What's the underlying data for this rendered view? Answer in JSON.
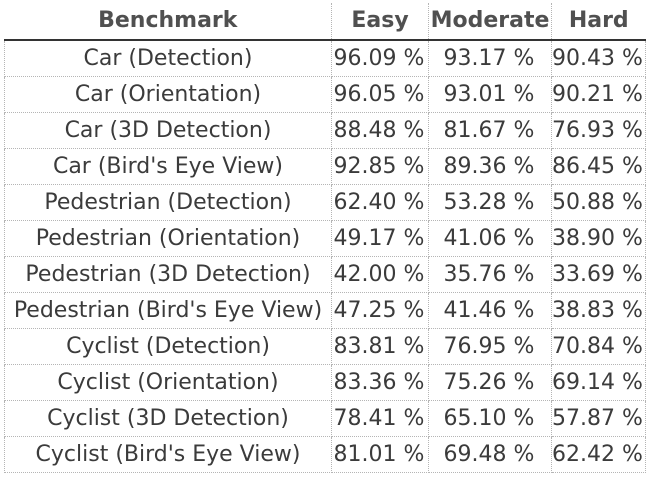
{
  "table": {
    "headers": {
      "benchmark": "Benchmark",
      "easy": "Easy",
      "moderate": "Moderate",
      "hard": "Hard"
    },
    "rows": [
      {
        "benchmark": "Car (Detection)",
        "easy": "96.09 %",
        "moderate": "93.17 %",
        "hard": "90.43 %"
      },
      {
        "benchmark": "Car (Orientation)",
        "easy": "96.05 %",
        "moderate": "93.01 %",
        "hard": "90.21 %"
      },
      {
        "benchmark": "Car (3D Detection)",
        "easy": "88.48 %",
        "moderate": "81.67 %",
        "hard": "76.93 %"
      },
      {
        "benchmark": "Car (Bird's Eye View)",
        "easy": "92.85 %",
        "moderate": "89.36 %",
        "hard": "86.45 %"
      },
      {
        "benchmark": "Pedestrian (Detection)",
        "easy": "62.40 %",
        "moderate": "53.28 %",
        "hard": "50.88 %"
      },
      {
        "benchmark": "Pedestrian (Orientation)",
        "easy": "49.17 %",
        "moderate": "41.06 %",
        "hard": "38.90 %"
      },
      {
        "benchmark": "Pedestrian (3D Detection)",
        "easy": "42.00 %",
        "moderate": "35.76 %",
        "hard": "33.69 %"
      },
      {
        "benchmark": "Pedestrian (Bird's Eye View)",
        "easy": "47.25 %",
        "moderate": "41.46 %",
        "hard": "38.83 %"
      },
      {
        "benchmark": "Cyclist (Detection)",
        "easy": "83.81 %",
        "moderate": "76.95 %",
        "hard": "70.84 %"
      },
      {
        "benchmark": "Cyclist (Orientation)",
        "easy": "83.36 %",
        "moderate": "75.26 %",
        "hard": "69.14 %"
      },
      {
        "benchmark": "Cyclist (3D Detection)",
        "easy": "78.41 %",
        "moderate": "65.10 %",
        "hard": "57.87 %"
      },
      {
        "benchmark": "Cyclist (Bird's Eye View)",
        "easy": "81.01 %",
        "moderate": "69.48 %",
        "hard": "62.42 %"
      }
    ]
  }
}
